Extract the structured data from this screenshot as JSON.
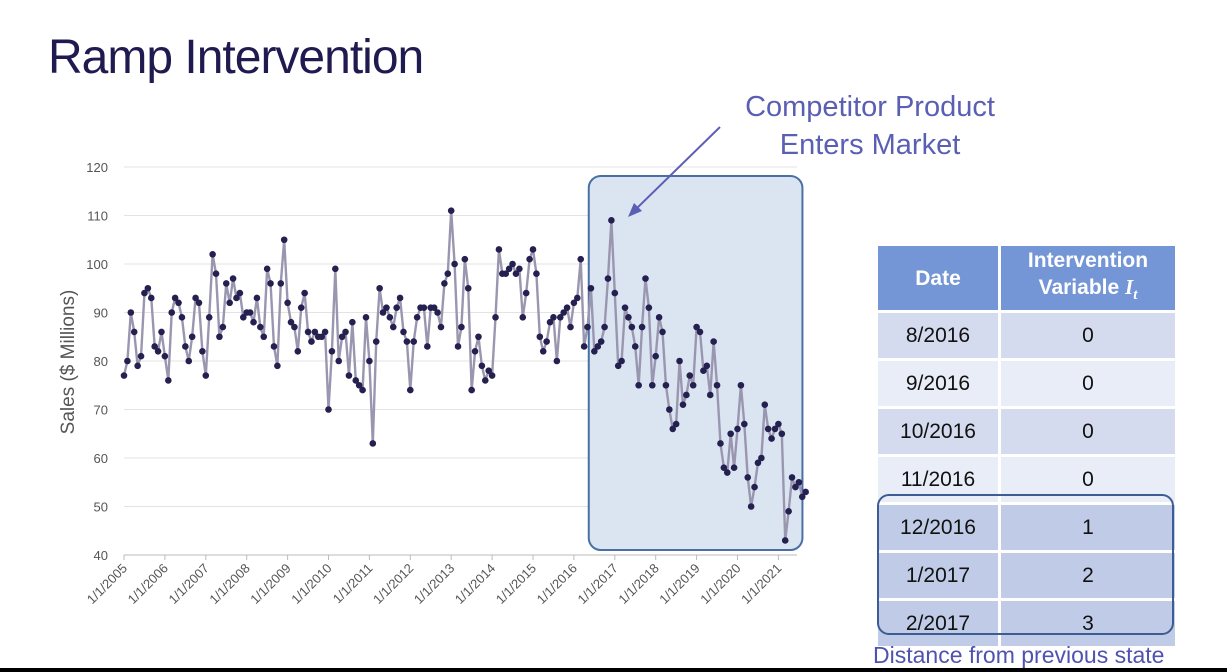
{
  "title": "Ramp Intervention",
  "annotation": [
    "Competitor Product",
    "Enters Market"
  ],
  "footnote": "Distance from previous state",
  "table": {
    "headers": {
      "date": "Date",
      "intervention_line1": "Intervention",
      "intervention_line2": "Variable",
      "intervention_symbol": "I",
      "intervention_sub": "t"
    },
    "rows": [
      {
        "date": "8/2016",
        "value": "0"
      },
      {
        "date": "9/2016",
        "value": "0"
      },
      {
        "date": "10/2016",
        "value": "0"
      },
      {
        "date": "11/2016",
        "value": "0"
      },
      {
        "date": "12/2016",
        "value": "1"
      },
      {
        "date": "1/2017",
        "value": "2"
      },
      {
        "date": "2/2017",
        "value": "3"
      }
    ]
  },
  "colors": {
    "title": "#1f1a4f",
    "accent": "#5b5fb3",
    "line": "#9a96b0",
    "marker": "#24204f",
    "highlight_fill": "#dbe5f2",
    "highlight_border": "#4a6fa5",
    "table_header": "#7496d6"
  },
  "chart_data": {
    "type": "line",
    "ylabel": "Sales ($ Millions)",
    "xlabel": "",
    "ylim": [
      40,
      120
    ],
    "yticks": [
      40,
      50,
      60,
      70,
      80,
      90,
      100,
      110,
      120
    ],
    "xtick_labels": [
      "1/1/2005",
      "1/1/2006",
      "1/1/2007",
      "1/1/2008",
      "1/1/2009",
      "1/1/2010",
      "1/1/2011",
      "1/1/2012",
      "1/1/2013",
      "1/1/2014",
      "1/1/2015",
      "1/1/2016",
      "1/1/2017",
      "1/1/2018",
      "1/1/2019",
      "1/1/2020",
      "1/1/2021"
    ],
    "grid": true,
    "start": "2005-01",
    "frequency": "monthly",
    "highlight_region": {
      "from": "2016-08",
      "to": "2021-06"
    },
    "values": [
      77,
      80,
      90,
      86,
      79,
      81,
      94,
      95,
      93,
      83,
      82,
      86,
      81,
      76,
      90,
      93,
      92,
      89,
      83,
      80,
      85,
      93,
      92,
      82,
      77,
      89,
      102,
      98,
      85,
      87,
      96,
      92,
      97,
      93,
      94,
      89,
      90,
      90,
      88,
      93,
      87,
      85,
      99,
      96,
      83,
      79,
      96,
      105,
      92,
      88,
      87,
      82,
      91,
      94,
      86,
      84,
      86,
      85,
      85,
      86,
      70,
      82,
      99,
      80,
      85,
      86,
      77,
      88,
      76,
      75,
      74,
      89,
      80,
      63,
      84,
      95,
      90,
      91,
      89,
      87,
      91,
      93,
      86,
      84,
      74,
      84,
      89,
      91,
      91,
      83,
      91,
      91,
      90,
      87,
      96,
      98,
      111,
      100,
      83,
      87,
      101,
      95,
      74,
      82,
      85,
      79,
      76,
      78,
      77,
      89,
      103,
      98,
      98,
      99,
      100,
      98,
      99,
      89,
      94,
      101,
      103,
      98,
      85,
      82,
      84,
      88,
      89,
      80,
      89,
      90,
      91,
      87,
      92,
      93,
      101,
      83,
      87,
      95,
      82,
      83,
      84,
      87,
      97,
      109,
      94,
      79,
      80,
      91,
      89,
      87,
      83,
      75,
      87,
      97,
      91,
      75,
      81,
      89,
      86,
      75,
      70,
      66,
      67,
      80,
      71,
      73,
      77,
      75,
      87,
      86,
      78,
      79,
      73,
      84,
      75,
      63,
      58,
      57,
      65,
      58,
      66,
      75,
      67,
      56,
      50,
      54,
      59,
      60,
      71,
      66,
      64,
      66,
      67,
      65,
      43,
      49,
      56,
      54,
      55,
      52,
      53
    ]
  }
}
